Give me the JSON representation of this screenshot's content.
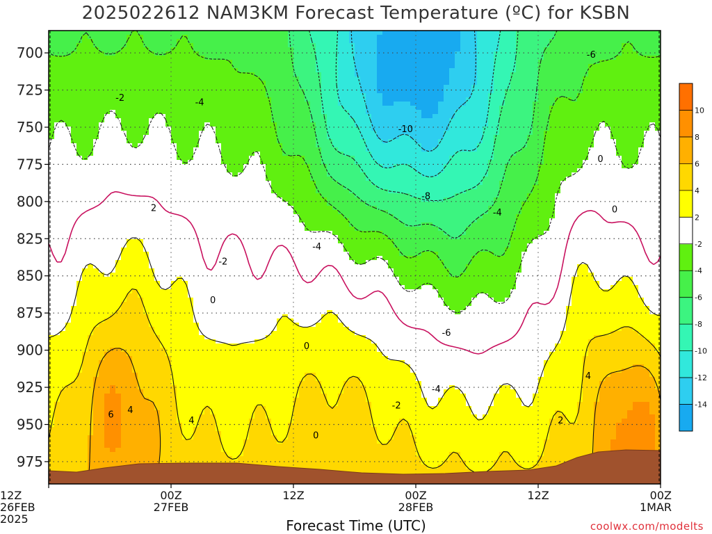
{
  "title": "2025022612 NAM3KM Forecast Temperature (ºC) for KSBN",
  "xlabel": "Forecast Time (UTC)",
  "credit": "coolwx.com/modelts",
  "chart_data": {
    "type": "contour",
    "title": "2025022612 NAM3KM Forecast Temperature (ºC) for KSBN",
    "xlabel": "Forecast Time (UTC)",
    "ylabel": "",
    "y_ticks": [
      700,
      725,
      750,
      775,
      800,
      825,
      850,
      875,
      900,
      925,
      950,
      975
    ],
    "y_range": [
      685,
      990
    ],
    "x_ticks": [
      {
        "hour": 0,
        "line1": "12Z",
        "line2": "26FEB",
        "line3": "2025"
      },
      {
        "hour": 12,
        "line1": "00Z",
        "line2": "27FEB",
        "line3": ""
      },
      {
        "hour": 24,
        "line1": "12Z",
        "line2": "",
        "line3": ""
      },
      {
        "hour": 36,
        "line1": "00Z",
        "line2": "28FEB",
        "line3": ""
      },
      {
        "hour": 48,
        "line1": "12Z",
        "line2": "",
        "line3": ""
      },
      {
        "hour": 60,
        "line1": "00Z",
        "line2": "1MAR",
        "line3": ""
      }
    ],
    "x_range": [
      0,
      60
    ],
    "colorbar": {
      "levels": [
        -16,
        -14,
        -12,
        -10,
        -8,
        -6,
        -4,
        -2,
        2,
        4,
        6,
        8,
        10,
        12
      ],
      "labels": [
        "-14",
        "-12",
        "-10",
        "-8",
        "-6",
        "-4",
        "-2",
        "2",
        "4",
        "6",
        "8",
        "10"
      ],
      "colors": [
        "#18aaf0",
        "#2ecef0",
        "#31e8dc",
        "#34f6b4",
        "#3cf480",
        "#46f04a",
        "#60f010",
        "#ffffff",
        "#ffff00",
        "#ffd800",
        "#ffb000",
        "#ff9000",
        "#ff7000"
      ]
    },
    "contour_labels": [
      {
        "text": "-6",
        "hour": 53.2,
        "p": 701
      },
      {
        "text": "-2",
        "hour": 7.0,
        "p": 730
      },
      {
        "text": "-4",
        "hour": 14.8,
        "p": 733
      },
      {
        "text": "-10",
        "hour": 35.0,
        "p": 751
      },
      {
        "text": "0",
        "hour": 54.1,
        "p": 771
      },
      {
        "text": "-8",
        "hour": 37.0,
        "p": 796
      },
      {
        "text": "0",
        "hour": 55.5,
        "p": 805
      },
      {
        "text": "-4",
        "hour": 44.0,
        "p": 807
      },
      {
        "text": "2",
        "hour": 10.3,
        "p": 804
      },
      {
        "text": "-4",
        "hour": 26.3,
        "p": 830
      },
      {
        "text": "-2",
        "hour": 17.1,
        "p": 840
      },
      {
        "text": "0",
        "hour": 16.1,
        "p": 866
      },
      {
        "text": "-6",
        "hour": 39.0,
        "p": 888
      },
      {
        "text": "0",
        "hour": 25.3,
        "p": 897
      },
      {
        "text": "4",
        "hour": 52.9,
        "p": 917
      },
      {
        "text": "-4",
        "hour": 38.0,
        "p": 926
      },
      {
        "text": "-2",
        "hour": 34.1,
        "p": 937
      },
      {
        "text": "4",
        "hour": 8.0,
        "p": 940
      },
      {
        "text": "6",
        "hour": 6.1,
        "p": 943
      },
      {
        "text": "2",
        "hour": 50.2,
        "p": 947
      },
      {
        "text": "4",
        "hour": 14.0,
        "p": 947
      },
      {
        "text": "0",
        "hour": 26.2,
        "p": 957
      }
    ]
  }
}
